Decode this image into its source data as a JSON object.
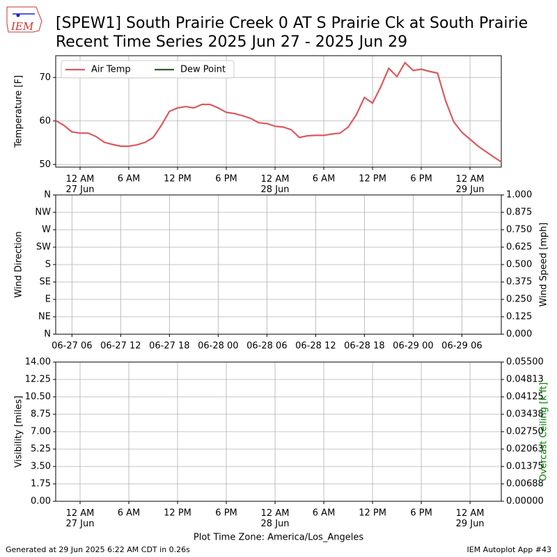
{
  "header": {
    "title_lines": [
      "[SPEW1] South Prairie Creek 0 AT S Prairie Ck at South Prairie",
      "Recent Time Series 2025 Jun 27 - 2025 Jun 29"
    ],
    "logo_text": "IEM"
  },
  "footer": {
    "left": "Generated at 29 Jun 2025 6:22 AM CDT in 0.26s",
    "right": "IEM Autoplot App #43"
  },
  "chart_data": [
    {
      "type": "line",
      "ylabel": "Temperature [F]",
      "grid": true,
      "legend": "upper left",
      "x": [
        "2025-06-26T21:00",
        "2025-06-26T22:00",
        "2025-06-26T23:00",
        "2025-06-27T00:00",
        "2025-06-27T01:00",
        "2025-06-27T02:00",
        "2025-06-27T03:00",
        "2025-06-27T04:00",
        "2025-06-27T05:00",
        "2025-06-27T06:00",
        "2025-06-27T07:00",
        "2025-06-27T08:00",
        "2025-06-27T09:00",
        "2025-06-27T10:00",
        "2025-06-27T11:00",
        "2025-06-27T12:00",
        "2025-06-27T13:00",
        "2025-06-27T14:00",
        "2025-06-27T15:00",
        "2025-06-27T16:00",
        "2025-06-27T17:00",
        "2025-06-27T18:00",
        "2025-06-27T19:00",
        "2025-06-27T20:00",
        "2025-06-27T21:00",
        "2025-06-27T22:00",
        "2025-06-27T23:00",
        "2025-06-28T00:00",
        "2025-06-28T01:00",
        "2025-06-28T02:00",
        "2025-06-28T03:00",
        "2025-06-28T04:00",
        "2025-06-28T05:00",
        "2025-06-28T06:00",
        "2025-06-28T07:00",
        "2025-06-28T08:00",
        "2025-06-28T09:00",
        "2025-06-28T10:00",
        "2025-06-28T11:00",
        "2025-06-28T12:00",
        "2025-06-28T13:00",
        "2025-06-28T14:00",
        "2025-06-28T15:00",
        "2025-06-28T16:00",
        "2025-06-28T17:00",
        "2025-06-28T18:00",
        "2025-06-28T19:00",
        "2025-06-28T20:00",
        "2025-06-28T21:00",
        "2025-06-28T22:00",
        "2025-06-28T23:00",
        "2025-06-29T00:00",
        "2025-06-29T01:00",
        "2025-06-29T02:00",
        "2025-06-29T03:00",
        "2025-06-29T03:51"
      ],
      "series": [
        {
          "name": "Air Temp",
          "color": "#d9595f",
          "values": [
            60.1,
            59.0,
            57.5,
            57.2,
            57.2,
            56.4,
            55.1,
            54.6,
            54.2,
            54.2,
            54.5,
            55.1,
            56.2,
            59.0,
            62.2,
            63.0,
            63.3,
            63.0,
            63.8,
            63.8,
            63.0,
            62.0,
            61.7,
            61.2,
            60.6,
            59.6,
            59.4,
            58.8,
            58.6,
            58.0,
            56.2,
            56.6,
            56.7,
            56.7,
            57.0,
            57.2,
            58.6,
            61.4,
            65.4,
            64.1,
            67.8,
            72.1,
            70.2,
            73.4,
            71.6,
            71.9,
            71.4,
            71.0,
            64.6,
            59.8,
            57.4,
            55.8,
            54.2,
            52.9,
            51.6,
            50.6
          ]
        },
        {
          "name": "Dew Point",
          "color": "#2d5e2d",
          "values": [
            null,
            null,
            null,
            null,
            null,
            null,
            null,
            null,
            null,
            null,
            null,
            null,
            null,
            null,
            null,
            null,
            null,
            null,
            null,
            null,
            null,
            null,
            null,
            null,
            null,
            null,
            null,
            null,
            null,
            null,
            null,
            null,
            null,
            null,
            null,
            null,
            null,
            null,
            null,
            null,
            null,
            null,
            null,
            null,
            null,
            null,
            null,
            null,
            null,
            null,
            null,
            null,
            null,
            null,
            null,
            null
          ]
        }
      ],
      "xlim": [
        "2025-06-26T21:00",
        "2025-06-29T03:51"
      ],
      "xticks": [
        {
          "value": "2025-06-27T00:00",
          "label": "12 AM\n27 Jun"
        },
        {
          "value": "2025-06-27T06:00",
          "label": "6 AM"
        },
        {
          "value": "2025-06-27T12:00",
          "label": "12 PM"
        },
        {
          "value": "2025-06-27T18:00",
          "label": "6 PM"
        },
        {
          "value": "2025-06-28T00:00",
          "label": "12 AM\n28 Jun"
        },
        {
          "value": "2025-06-28T06:00",
          "label": "6 AM"
        },
        {
          "value": "2025-06-28T12:00",
          "label": "12 PM"
        },
        {
          "value": "2025-06-28T18:00",
          "label": "6 PM"
        },
        {
          "value": "2025-06-29T00:00",
          "label": "12 AM\n29 Jun"
        }
      ],
      "ylim": [
        49.4,
        75.0
      ],
      "yticks": [
        50,
        60,
        70
      ]
    },
    {
      "type": "line",
      "ylabel": "Wind Direction",
      "y2label": "Wind Speed [mph]",
      "grid": true,
      "series": [],
      "xlim": [
        "2025-06-27T04:00",
        "2025-06-29T10:51"
      ],
      "xticks": [
        {
          "value": "2025-06-27T06:00",
          "label": "06-27 06"
        },
        {
          "value": "2025-06-27T12:00",
          "label": "06-27 12"
        },
        {
          "value": "2025-06-27T18:00",
          "label": "06-27 18"
        },
        {
          "value": "2025-06-28T00:00",
          "label": "06-28 00"
        },
        {
          "value": "2025-06-28T06:00",
          "label": "06-28 06"
        },
        {
          "value": "2025-06-28T12:00",
          "label": "06-28 12"
        },
        {
          "value": "2025-06-28T18:00",
          "label": "06-28 18"
        },
        {
          "value": "2025-06-29T00:00",
          "label": "06-29 00"
        },
        {
          "value": "2025-06-29T06:00",
          "label": "06-29 06"
        }
      ],
      "ylim": [
        0,
        360
      ],
      "yticks": [
        {
          "value": 0,
          "label": "N"
        },
        {
          "value": 45,
          "label": "NE"
        },
        {
          "value": 90,
          "label": "E"
        },
        {
          "value": 135,
          "label": "SE"
        },
        {
          "value": 180,
          "label": "S"
        },
        {
          "value": 225,
          "label": "SW"
        },
        {
          "value": 270,
          "label": "W"
        },
        {
          "value": 315,
          "label": "NW"
        },
        {
          "value": 360,
          "label": "N"
        }
      ],
      "y2lim": [
        0,
        1
      ],
      "y2ticks": [
        {
          "value": 0,
          "label": "0.000"
        },
        {
          "value": 0.125,
          "label": "0.125"
        },
        {
          "value": 0.25,
          "label": "0.250"
        },
        {
          "value": 0.375,
          "label": "0.375"
        },
        {
          "value": 0.5,
          "label": "0.500"
        },
        {
          "value": 0.625,
          "label": "0.625"
        },
        {
          "value": 0.75,
          "label": "0.750"
        },
        {
          "value": 0.875,
          "label": "0.875"
        },
        {
          "value": 1,
          "label": "1.000"
        }
      ]
    },
    {
      "type": "line",
      "ylabel": "Visibility [miles]",
      "y2label": "Overcast Ceiling [k ft]",
      "y2label_color": "#008000",
      "xlabel": "Plot Time Zone: America/Los_Angeles",
      "grid": true,
      "series": [],
      "xlim": [
        "2025-06-26T21:00",
        "2025-06-29T03:51"
      ],
      "xticks": [
        {
          "value": "2025-06-27T00:00",
          "label": "12 AM\n27 Jun"
        },
        {
          "value": "2025-06-27T06:00",
          "label": "6 AM"
        },
        {
          "value": "2025-06-27T12:00",
          "label": "12 PM"
        },
        {
          "value": "2025-06-27T18:00",
          "label": "6 PM"
        },
        {
          "value": "2025-06-28T00:00",
          "label": "12 AM\n28 Jun"
        },
        {
          "value": "2025-06-28T06:00",
          "label": "6 AM"
        },
        {
          "value": "2025-06-28T12:00",
          "label": "12 PM"
        },
        {
          "value": "2025-06-28T18:00",
          "label": "6 PM"
        },
        {
          "value": "2025-06-29T00:00",
          "label": "12 AM\n29 Jun"
        }
      ],
      "ylim": [
        0,
        14
      ],
      "yticks": [
        {
          "value": 0,
          "label": "0.00"
        },
        {
          "value": 1.75,
          "label": "1.75"
        },
        {
          "value": 3.5,
          "label": "3.50"
        },
        {
          "value": 5.25,
          "label": "5.25"
        },
        {
          "value": 7,
          "label": "7.00"
        },
        {
          "value": 8.75,
          "label": "8.75"
        },
        {
          "value": 10.5,
          "label": "10.50"
        },
        {
          "value": 12.25,
          "label": "12.25"
        },
        {
          "value": 14,
          "label": "14.00"
        }
      ],
      "y2lim": [
        0,
        0.055
      ],
      "y2ticks": [
        {
          "value": 0,
          "label": "0.00000"
        },
        {
          "value": 0.006875,
          "label": "0.00688"
        },
        {
          "value": 0.01375,
          "label": "0.01375"
        },
        {
          "value": 0.020625,
          "label": "0.02063"
        },
        {
          "value": 0.0275,
          "label": "0.02750"
        },
        {
          "value": 0.034375,
          "label": "0.03438"
        },
        {
          "value": 0.04125,
          "label": "0.04125"
        },
        {
          "value": 0.048125,
          "label": "0.04813"
        },
        {
          "value": 0.055,
          "label": "0.05500"
        }
      ]
    }
  ]
}
